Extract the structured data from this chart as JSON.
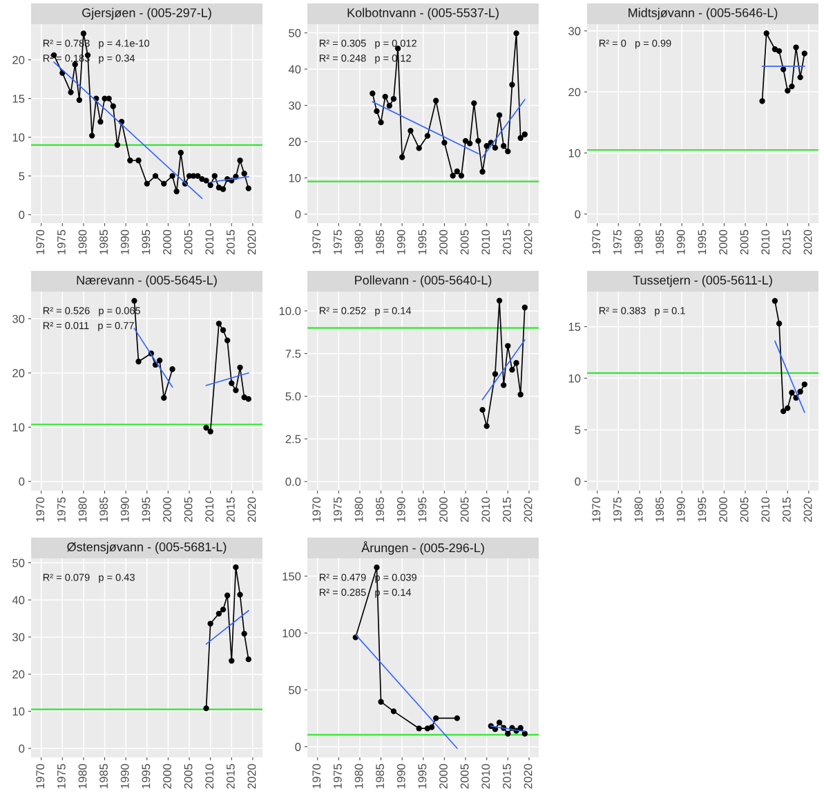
{
  "chart_data": [
    {
      "type": "line",
      "title": "Gjersjøen - (005-297-L)",
      "xlim": [
        1967.6,
        2022.3
      ],
      "xticks": [
        1970,
        1975,
        1980,
        1985,
        1990,
        1995,
        2000,
        2005,
        2010,
        2015,
        2020
      ],
      "ylim": [
        -1.1,
        24.6
      ],
      "yticks": [
        0,
        5,
        10,
        15,
        20
      ],
      "grid": true,
      "series": [
        {
          "color": "#000000",
          "marker": "circle",
          "x": [
            1973,
            1975,
            1977,
            1978,
            1979,
            1980,
            1981,
            1982,
            1983,
            1984,
            1985,
            1986,
            1987,
            1988,
            1989,
            1991,
            1993,
            1995,
            1997,
            1999,
            2001,
            2002,
            2003,
            2004,
            2005,
            2006,
            2007,
            2008,
            2009,
            2010,
            2011,
            2012,
            2013,
            2014,
            2015,
            2016,
            2017,
            2018,
            2019
          ],
          "values": [
            20.6,
            18.3,
            15.8,
            19.4,
            14.8,
            23.4,
            20.6,
            10.2,
            15.0,
            12.0,
            15.0,
            15.0,
            14.0,
            9.0,
            12.0,
            7.0,
            7.0,
            4.0,
            5.0,
            4.0,
            5.0,
            3.0,
            8.0,
            4.0,
            5.0,
            5.0,
            5.0,
            4.6,
            4.4,
            3.8,
            5.0,
            3.5,
            3.3,
            4.6,
            4.4,
            4.9,
            7.0,
            5.3,
            3.4
          ]
        },
        {
          "type": "line",
          "color": "#3366ff",
          "marker": "none",
          "x": [
            1973,
            2008
          ],
          "values": [
            19.7,
            2.1
          ]
        },
        {
          "type": "line",
          "color": "#3366ff",
          "marker": "none",
          "x": [
            2010,
            2019
          ],
          "values": [
            4.2,
            4.9
          ]
        }
      ],
      "ref_lines": [
        {
          "axis": "y",
          "value": 9.0,
          "color": "#2ee82e"
        }
      ],
      "annotations": [
        "R² = 0.783   p = 4.1e-10",
        "R² = 0.183   p = 0.34"
      ]
    },
    {
      "type": "line",
      "title": "Kolbotnvann - (005-5537-L)",
      "xlim": [
        1967.6,
        2022.3
      ],
      "xticks": [
        1970,
        1975,
        1980,
        1985,
        1990,
        1995,
        2000,
        2005,
        2010,
        2015,
        2020
      ],
      "ylim": [
        -2.5,
        52.4
      ],
      "yticks": [
        0,
        10,
        20,
        30,
        40,
        50
      ],
      "grid": true,
      "series": [
        {
          "color": "#000000",
          "marker": "circle",
          "x": [
            1983,
            1984,
            1985,
            1986,
            1987,
            1988,
            1989,
            1990,
            1992,
            1994,
            1996,
            1998,
            2000,
            2002,
            2003,
            2004,
            2005,
            2006,
            2007,
            2008,
            2009,
            2010,
            2011,
            2012,
            2013,
            2014,
            2015,
            2016,
            2017,
            2018,
            2019
          ],
          "values": [
            33.3,
            28.4,
            25.3,
            32.4,
            29.9,
            31.8,
            45.7,
            15.7,
            23.0,
            18.2,
            21.6,
            31.3,
            19.7,
            10.6,
            11.8,
            10.6,
            20.2,
            19.5,
            30.6,
            20.2,
            11.7,
            18.8,
            19.7,
            18.3,
            27.3,
            18.8,
            17.3,
            35.7,
            49.9,
            21.0,
            22.0
          ]
        },
        {
          "type": "line",
          "color": "#3366ff",
          "marker": "none",
          "x": [
            1983,
            2008
          ],
          "values": [
            31.0,
            16.7
          ]
        },
        {
          "type": "line",
          "color": "#3366ff",
          "marker": "none",
          "x": [
            2009,
            2019
          ],
          "values": [
            15.7,
            31.6
          ]
        }
      ],
      "ref_lines": [
        {
          "axis": "y",
          "value": 9.0,
          "color": "#2ee82e"
        }
      ],
      "annotations": [
        "R² = 0.305   p = 0.012",
        "R² = 0.248   p = 0.12"
      ]
    },
    {
      "type": "line",
      "title": "Midtsjøvann - (005-5646-L)",
      "xlim": [
        1967.6,
        2022.3
      ],
      "xticks": [
        1970,
        1975,
        1980,
        1985,
        1990,
        1995,
        2000,
        2005,
        2010,
        2015,
        2020
      ],
      "ylim": [
        -1.5,
        31.1
      ],
      "yticks": [
        0,
        10,
        20,
        30
      ],
      "grid": true,
      "series": [
        {
          "color": "#000000",
          "marker": "circle",
          "x": [
            2009,
            2010,
            2012,
            2013,
            2014,
            2015,
            2016,
            2017,
            2018,
            2019
          ],
          "values": [
            18.5,
            29.6,
            27.0,
            26.7,
            23.7,
            20.2,
            20.9,
            27.3,
            22.4,
            26.3
          ]
        },
        {
          "type": "line",
          "color": "#3366ff",
          "marker": "none",
          "x": [
            2009,
            2019
          ],
          "values": [
            24.2,
            24.2
          ]
        }
      ],
      "ref_lines": [
        {
          "axis": "y",
          "value": 10.5,
          "color": "#2ee82e"
        }
      ],
      "annotations": [
        "R² = 0   p = 0.99"
      ]
    },
    {
      "type": "line",
      "title": "Nærevann - (005-5645-L)",
      "xlim": [
        1967.6,
        2022.3
      ],
      "xticks": [
        1970,
        1975,
        1980,
        1985,
        1990,
        1995,
        2000,
        2005,
        2010,
        2015,
        2020
      ],
      "ylim": [
        -1.7,
        35.0
      ],
      "yticks": [
        0,
        10,
        20,
        30
      ],
      "grid": true,
      "series": [
        {
          "color": "#000000",
          "marker": "circle",
          "x": [
            1992,
            1993,
            1996,
            1997,
            1998,
            1999,
            2001
          ],
          "values": [
            33.3,
            22.1,
            23.6,
            21.5,
            22.3,
            15.4,
            20.7
          ]
        },
        {
          "color": "#000000",
          "marker": "circle",
          "x": [
            2009,
            2010,
            2012,
            2013,
            2014,
            2015,
            2016,
            2017,
            2018,
            2019
          ],
          "values": [
            9.9,
            9.2,
            29.1,
            27.9,
            26.0,
            18.1,
            16.8,
            21.0,
            15.5,
            15.2
          ]
        },
        {
          "type": "line",
          "color": "#3366ff",
          "marker": "none",
          "x": [
            1992,
            2001
          ],
          "values": [
            28.2,
            17.4
          ]
        },
        {
          "type": "line",
          "color": "#3366ff",
          "marker": "none",
          "x": [
            2009,
            2019
          ],
          "values": [
            17.7,
            20.0
          ]
        }
      ],
      "ref_lines": [
        {
          "axis": "y",
          "value": 10.5,
          "color": "#2ee82e"
        }
      ],
      "annotations": [
        "R² = 0.526   p = 0.065",
        "R² = 0.011   p = 0.77"
      ]
    },
    {
      "type": "line",
      "title": "Pollevann - (005-5640-L)",
      "xlim": [
        1967.6,
        2022.3
      ],
      "xticks": [
        1970,
        1975,
        1980,
        1985,
        1990,
        1995,
        2000,
        2005,
        2010,
        2015,
        2020
      ],
      "ylim": [
        -0.53,
        11.13
      ],
      "yticks": [
        {
          "value": 0,
          "label": "0.0"
        },
        2.5,
        {
          "value": 5,
          "label": "5.0"
        },
        7.5,
        {
          "value": 10,
          "label": "10.0"
        }
      ],
      "grid": true,
      "series": [
        {
          "color": "#000000",
          "marker": "circle",
          "x": [
            2009,
            2010,
            2012,
            2013,
            2014,
            2015,
            2016,
            2017,
            2018,
            2019
          ],
          "values": [
            4.2,
            3.25,
            6.3,
            10.6,
            5.65,
            7.95,
            6.55,
            6.95,
            5.1,
            10.2
          ]
        },
        {
          "type": "line",
          "color": "#3366ff",
          "marker": "none",
          "x": [
            2009,
            2019
          ],
          "values": [
            4.8,
            8.3
          ]
        }
      ],
      "ref_lines": [
        {
          "axis": "y",
          "value": 9.0,
          "color": "#2ee82e"
        }
      ],
      "annotations": [
        "R² = 0.252   p = 0.14"
      ]
    },
    {
      "type": "line",
      "title": "Tussetjern - (005-5611-L)",
      "xlim": [
        1967.6,
        2022.3
      ],
      "xticks": [
        1970,
        1975,
        1980,
        1985,
        1990,
        1995,
        2000,
        2005,
        2010,
        2015,
        2020
      ],
      "ylim": [
        -0.9,
        18.4
      ],
      "yticks": [
        0,
        5,
        10,
        15
      ],
      "grid": true,
      "series": [
        {
          "color": "#000000",
          "marker": "circle",
          "x": [
            2012,
            2013,
            2014,
            2015,
            2016,
            2017,
            2018,
            2019
          ],
          "values": [
            17.5,
            15.3,
            6.8,
            7.1,
            8.6,
            8.1,
            8.7,
            9.4
          ]
        },
        {
          "type": "line",
          "color": "#3366ff",
          "marker": "none",
          "x": [
            2012,
            2019
          ],
          "values": [
            13.6,
            6.7
          ]
        }
      ],
      "ref_lines": [
        {
          "axis": "y",
          "value": 10.5,
          "color": "#2ee82e"
        }
      ],
      "annotations": [
        "R² = 0.383   p = 0.1"
      ]
    },
    {
      "type": "line",
      "title": "Østensjøvann - (005-5681-L)",
      "xlim": [
        1967.6,
        2022.3
      ],
      "xticks": [
        1970,
        1975,
        1980,
        1985,
        1990,
        1995,
        2000,
        2005,
        2010,
        2015,
        2020
      ],
      "ylim": [
        -2.4,
        51.2
      ],
      "yticks": [
        0,
        10,
        20,
        30,
        40,
        50
      ],
      "grid": true,
      "series": [
        {
          "color": "#000000",
          "marker": "circle",
          "x": [
            2009,
            2010,
            2012,
            2013,
            2014,
            2015,
            2016,
            2017,
            2018,
            2019
          ],
          "values": [
            10.8,
            33.6,
            36.3,
            37.4,
            41.2,
            23.6,
            48.8,
            41.4,
            30.9,
            24.0
          ]
        },
        {
          "type": "line",
          "color": "#3366ff",
          "marker": "none",
          "x": [
            2009,
            2019
          ],
          "values": [
            28.1,
            37.1
          ]
        }
      ],
      "ref_lines": [
        {
          "axis": "y",
          "value": 10.5,
          "color": "#2ee82e"
        }
      ],
      "annotations": [
        "R² = 0.079   p = 0.43"
      ]
    },
    {
      "type": "line",
      "title": "Årungen - (005-296-L)",
      "xlim": [
        1967.6,
        2022.3
      ],
      "xticks": [
        1970,
        1975,
        1980,
        1985,
        1990,
        1995,
        2000,
        2005,
        2010,
        2015,
        2020
      ],
      "ylim": [
        -9.3,
        165.7
      ],
      "yticks": [
        0,
        50,
        100,
        150
      ],
      "grid": true,
      "series": [
        {
          "color": "#000000",
          "marker": "circle",
          "x": [
            1979,
            1984,
            1985,
            1988,
            1994,
            1996,
            1997,
            1998,
            2003
          ],
          "values": [
            96.2,
            157.7,
            39.5,
            31.2,
            16.1,
            16.1,
            17.2,
            25.1,
            25.1
          ]
        },
        {
          "color": "#000000",
          "marker": "circle",
          "x": [
            2011,
            2012,
            2013,
            2014,
            2015,
            2016,
            2017,
            2018,
            2019
          ],
          "values": [
            18.2,
            15.5,
            21.3,
            16.5,
            11.5,
            16.5,
            14.0,
            16.5,
            11.5
          ]
        },
        {
          "type": "line",
          "color": "#3366ff",
          "marker": "none",
          "x": [
            1979,
            2003
          ],
          "values": [
            98.7,
            -1.3
          ]
        },
        {
          "type": "line",
          "color": "#3366ff",
          "marker": "none",
          "x": [
            2011,
            2019
          ],
          "values": [
            18.2,
            13.4
          ]
        }
      ],
      "ref_lines": [
        {
          "axis": "y",
          "value": 10.5,
          "color": "#2ee82e"
        }
      ],
      "annotations": [
        "R² = 0.479   p = 0.039",
        "R² = 0.285   p = 0.14"
      ]
    }
  ]
}
